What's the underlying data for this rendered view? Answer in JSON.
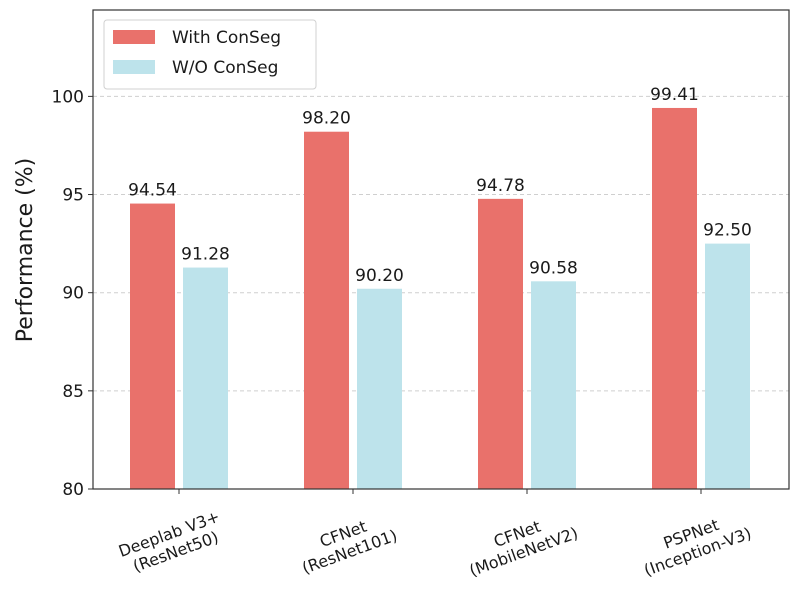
{
  "chart_data": {
    "type": "bar",
    "title": "",
    "xlabel": "",
    "ylabel": "Performance (%)",
    "ylim": [
      80,
      104.4
    ],
    "yticks": [
      80,
      85,
      90,
      95,
      100
    ],
    "grid": "y-dashed",
    "legend_position": "top-left",
    "categories": [
      [
        "Deeplab V3+",
        "(ResNet50)"
      ],
      [
        "CFNet",
        "(ResNet101)"
      ],
      [
        "CFNet",
        "(MobileNetV2)"
      ],
      [
        "PSPNet",
        "(Inception-V3)"
      ]
    ],
    "series": [
      {
        "name": "With ConSeg",
        "color": "#e9716b",
        "values": [
          94.54,
          98.2,
          94.78,
          99.41
        ],
        "labels": [
          "94.54",
          "98.20",
          "94.78",
          "99.41"
        ]
      },
      {
        "name": "W/O ConSeg",
        "color": "#bde3eb",
        "values": [
          91.28,
          90.2,
          90.58,
          92.5
        ],
        "labels": [
          "91.28",
          "90.20",
          "90.58",
          "92.50"
        ]
      }
    ]
  }
}
